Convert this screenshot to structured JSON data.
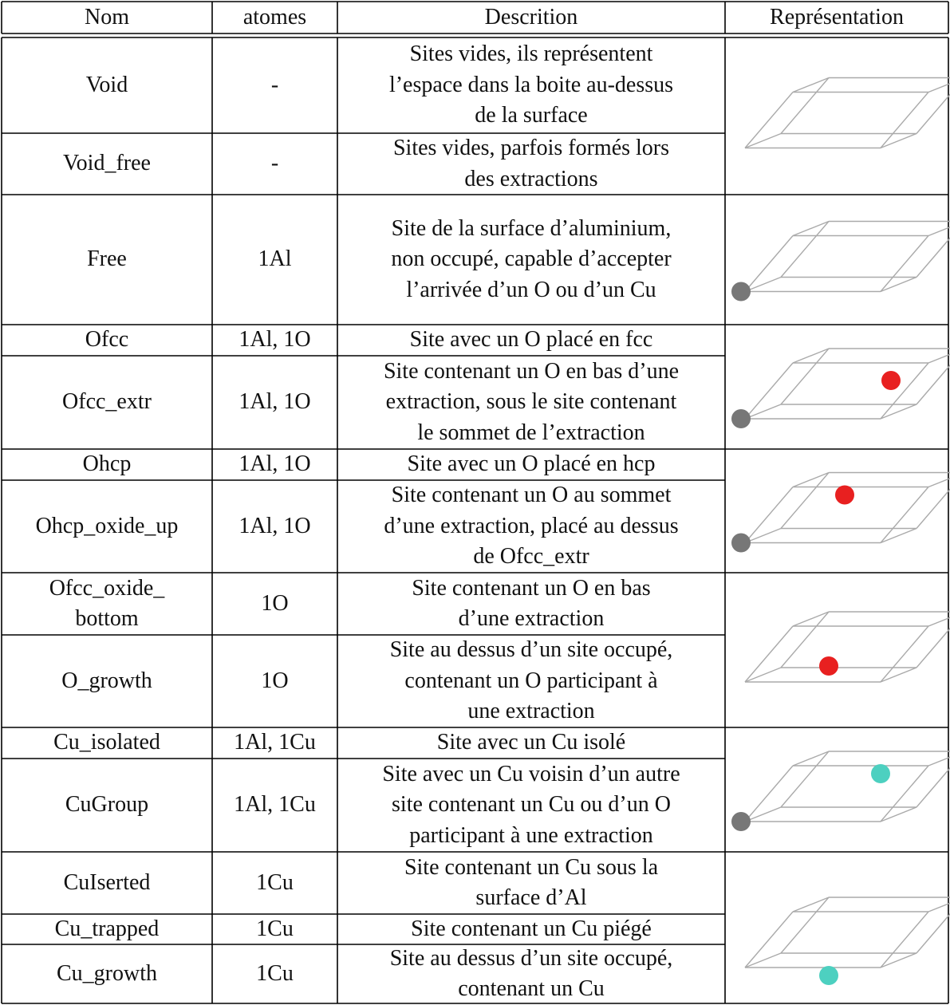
{
  "header": [
    "Nom",
    "atomes",
    "Descrition",
    "Représentation"
  ],
  "rows": [
    {
      "name": [
        "Void"
      ],
      "atoms": "-",
      "description": [
        "Sites vides, ils représentent",
        "l’espace dans la boite au-dessus",
        "de la surface"
      ]
    },
    {
      "name": [
        "Void_free"
      ],
      "atoms": "-",
      "description": [
        "Sites vides, parfois formés lors",
        "des extractions"
      ]
    },
    {
      "name": [
        "Free"
      ],
      "atoms": "1Al",
      "description": [
        "Site de la surface d’aluminium,",
        "non occupé, capable d’accepter",
        "l’arrivée d’un O ou d’un Cu"
      ]
    },
    {
      "name": [
        "Ofcc"
      ],
      "atoms": "1Al, 1O",
      "description": [
        "Site avec un O placé en fcc"
      ]
    },
    {
      "name": [
        "Ofcc_extr"
      ],
      "atoms": "1Al, 1O",
      "description": [
        "Site contenant un O en bas d’une",
        "extraction, sous le site contenant",
        "le sommet de l’extraction"
      ]
    },
    {
      "name": [
        "Ohcp"
      ],
      "atoms": "1Al, 1O",
      "description": [
        "Site avec un O placé en hcp"
      ]
    },
    {
      "name": [
        "Ohcp_oxide_up"
      ],
      "atoms": "1Al, 1O",
      "description": [
        "Site contenant un O au sommet",
        "d’une extraction, placé au dessus",
        "de Ofcc_extr"
      ]
    },
    {
      "name": [
        "Ofcc_oxide_",
        "bottom"
      ],
      "atoms": "1O",
      "description": [
        "Site contenant un O en bas",
        "d’une extraction"
      ]
    },
    {
      "name": [
        "O_growth"
      ],
      "atoms": "1O",
      "description": [
        "Site au dessus d’un site occupé,",
        "contenant un O participant à",
        "une extraction"
      ]
    },
    {
      "name": [
        "Cu_isolated"
      ],
      "atoms": "1Al, 1Cu",
      "description": [
        "Site avec un Cu isolé"
      ]
    },
    {
      "name": [
        "CuGroup"
      ],
      "atoms": "1Al, 1Cu",
      "description": [
        "Site avec un Cu voisin d’un autre",
        "site contenant un Cu ou d’un O",
        "participant à une extraction"
      ]
    },
    {
      "name": [
        "CuIserted"
      ],
      "atoms": "1Cu",
      "description": [
        "Site contenant un Cu sous la",
        "surface d’Al"
      ]
    },
    {
      "name": [
        "Cu_trapped"
      ],
      "atoms": "1Cu",
      "description": [
        "Site contenant un Cu piégé"
      ]
    },
    {
      "name": [
        "Cu_growth"
      ],
      "atoms": "1Cu",
      "description": [
        "Site au dessus d’un site occupé,",
        "contenant un Cu"
      ]
    }
  ]
}
